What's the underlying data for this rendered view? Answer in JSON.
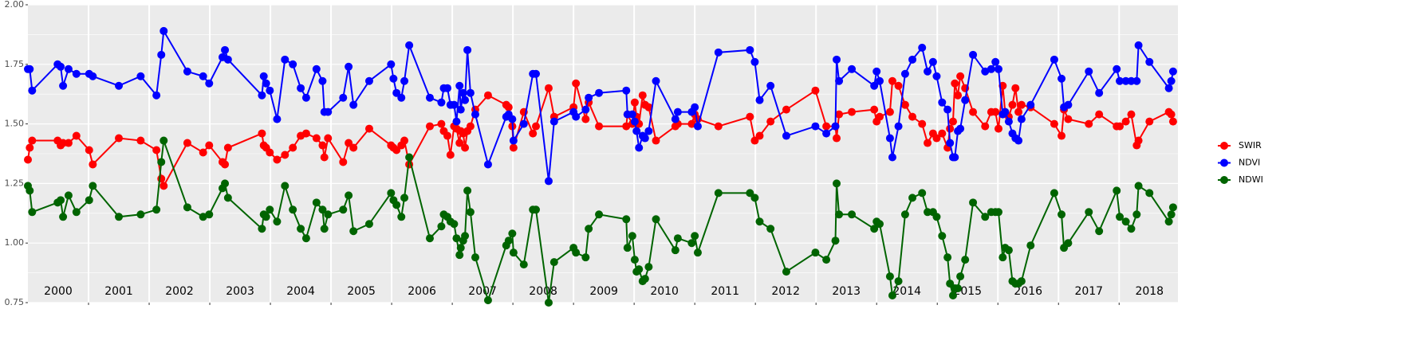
{
  "chart_data": {
    "type": "line",
    "x": [
      2000.0,
      2000.03,
      2000.07,
      2000.49,
      2000.54,
      2000.58,
      2000.67,
      2000.8,
      2001.01,
      2001.07,
      2001.5,
      2001.86,
      2002.12,
      2002.2,
      2002.24,
      2002.63,
      2002.89,
      2002.99,
      2003.21,
      2003.25,
      2003.3,
      2003.86,
      2003.89,
      2003.93,
      2003.99,
      2004.11,
      2004.24,
      2004.37,
      2004.5,
      2004.59,
      2004.76,
      2004.86,
      2004.89,
      2004.95,
      2005.2,
      2005.29,
      2005.37,
      2005.63,
      2005.99,
      2006.03,
      2006.08,
      2006.16,
      2006.21,
      2006.29,
      2006.63,
      2006.82,
      2006.86,
      2006.92,
      2006.97,
      2007.03,
      2007.07,
      2007.12,
      2007.14,
      2007.18,
      2007.21,
      2007.25,
      2007.3,
      2007.38,
      2007.59,
      2007.89,
      2007.93,
      2007.99,
      2008.01,
      2008.18,
      2008.33,
      2008.38,
      2008.59,
      2008.68,
      2009.0,
      2009.04,
      2009.2,
      2009.25,
      2009.42,
      2009.87,
      2009.89,
      2009.97,
      2010.01,
      2010.04,
      2010.08,
      2010.14,
      2010.18,
      2010.24,
      2010.36,
      2010.68,
      2010.72,
      2010.95,
      2011.0,
      2011.05,
      2011.39,
      2011.91,
      2011.99,
      2012.07,
      2012.25,
      2012.51,
      2012.99,
      2013.17,
      2013.32,
      2013.34,
      2013.38,
      2013.59,
      2013.96,
      2014.0,
      2014.05,
      2014.22,
      2014.26,
      2014.36,
      2014.47,
      2014.59,
      2014.75,
      2014.84,
      2014.93,
      2014.99,
      2015.08,
      2015.17,
      2015.21,
      2015.26,
      2015.29,
      2015.34,
      2015.38,
      2015.46,
      2015.59,
      2015.79,
      2015.89,
      2015.96,
      2016.01,
      2016.08,
      2016.12,
      2016.18,
      2016.24,
      2016.29,
      2016.34,
      2016.39,
      2016.54,
      2016.93,
      2017.05,
      2017.09,
      2017.16,
      2017.5,
      2017.67,
      2017.96,
      2018.01,
      2018.11,
      2018.2,
      2018.29,
      2018.32,
      2018.5,
      2018.82,
      2018.86,
      2018.89
    ],
    "series": [
      {
        "name": "SWIR",
        "color": "#ff0000",
        "values": [
          1.35,
          1.4,
          1.43,
          1.43,
          1.41,
          1.42,
          1.42,
          1.45,
          1.39,
          1.33,
          1.44,
          1.43,
          1.39,
          1.27,
          1.24,
          1.42,
          1.38,
          1.41,
          1.34,
          1.33,
          1.4,
          1.46,
          1.41,
          1.4,
          1.38,
          1.35,
          1.37,
          1.4,
          1.45,
          1.46,
          1.44,
          1.41,
          1.36,
          1.44,
          1.34,
          1.42,
          1.4,
          1.48,
          1.41,
          1.4,
          1.39,
          1.41,
          1.43,
          1.33,
          1.49,
          1.5,
          1.47,
          1.45,
          1.37,
          1.49,
          1.48,
          1.42,
          1.47,
          1.46,
          1.4,
          1.47,
          1.49,
          1.56,
          1.62,
          1.58,
          1.57,
          1.49,
          1.4,
          1.55,
          1.46,
          1.49,
          1.65,
          1.53,
          1.57,
          1.67,
          1.52,
          1.59,
          1.49,
          1.49,
          1.54,
          1.5,
          1.59,
          1.53,
          1.5,
          1.62,
          1.58,
          1.57,
          1.43,
          1.49,
          1.5,
          1.5,
          1.54,
          1.52,
          1.49,
          1.53,
          1.43,
          1.45,
          1.51,
          1.56,
          1.64,
          1.49,
          1.49,
          1.44,
          1.54,
          1.55,
          1.56,
          1.51,
          1.53,
          1.55,
          1.68,
          1.66,
          1.58,
          1.53,
          1.5,
          1.42,
          1.46,
          1.44,
          1.46,
          1.4,
          1.48,
          1.51,
          1.67,
          1.62,
          1.7,
          1.65,
          1.55,
          1.49,
          1.55,
          1.55,
          1.48,
          1.66,
          1.55,
          1.53,
          1.58,
          1.65,
          1.55,
          1.58,
          1.57,
          1.5,
          1.45,
          1.56,
          1.52,
          1.5,
          1.54,
          1.49,
          1.49,
          1.51,
          1.54,
          1.41,
          1.43,
          1.51,
          1.55,
          1.54,
          1.51
        ]
      },
      {
        "name": "NDVI",
        "color": "#0000ff",
        "values": [
          1.73,
          1.73,
          1.64,
          1.75,
          1.74,
          1.66,
          1.73,
          1.71,
          1.71,
          1.7,
          1.66,
          1.7,
          1.62,
          1.79,
          1.89,
          1.72,
          1.7,
          1.67,
          1.78,
          1.81,
          1.77,
          1.62,
          1.7,
          1.67,
          1.64,
          1.52,
          1.77,
          1.75,
          1.65,
          1.61,
          1.73,
          1.68,
          1.55,
          1.55,
          1.61,
          1.74,
          1.58,
          1.68,
          1.75,
          1.69,
          1.63,
          1.61,
          1.68,
          1.83,
          1.61,
          1.59,
          1.65,
          1.65,
          1.58,
          1.58,
          1.51,
          1.66,
          1.56,
          1.63,
          1.6,
          1.81,
          1.63,
          1.54,
          1.33,
          1.53,
          1.54,
          1.52,
          1.43,
          1.5,
          1.71,
          1.71,
          1.26,
          1.51,
          1.55,
          1.53,
          1.56,
          1.61,
          1.63,
          1.64,
          1.54,
          1.54,
          1.51,
          1.47,
          1.4,
          1.45,
          1.44,
          1.47,
          1.68,
          1.52,
          1.55,
          1.55,
          1.57,
          1.49,
          1.8,
          1.81,
          1.76,
          1.6,
          1.66,
          1.45,
          1.49,
          1.46,
          1.49,
          1.77,
          1.68,
          1.73,
          1.66,
          1.72,
          1.68,
          1.44,
          1.36,
          1.49,
          1.71,
          1.77,
          1.82,
          1.72,
          1.76,
          1.7,
          1.59,
          1.56,
          1.42,
          1.36,
          1.36,
          1.47,
          1.48,
          1.6,
          1.79,
          1.72,
          1.73,
          1.76,
          1.73,
          1.54,
          1.55,
          1.51,
          1.46,
          1.44,
          1.43,
          1.52,
          1.58,
          1.77,
          1.69,
          1.57,
          1.58,
          1.72,
          1.63,
          1.73,
          1.68,
          1.68,
          1.68,
          1.68,
          1.83,
          1.76,
          1.65,
          1.68,
          1.72
        ]
      },
      {
        "name": "NDWI",
        "color": "#006400",
        "values": [
          1.24,
          1.22,
          1.13,
          1.17,
          1.18,
          1.11,
          1.2,
          1.13,
          1.18,
          1.24,
          1.11,
          1.12,
          1.14,
          1.34,
          1.43,
          1.15,
          1.11,
          1.12,
          1.23,
          1.25,
          1.19,
          1.06,
          1.12,
          1.11,
          1.14,
          1.09,
          1.24,
          1.14,
          1.06,
          1.02,
          1.17,
          1.14,
          1.06,
          1.12,
          1.14,
          1.2,
          1.05,
          1.08,
          1.21,
          1.18,
          1.16,
          1.11,
          1.19,
          1.36,
          1.02,
          1.07,
          1.12,
          1.11,
          1.09,
          1.08,
          1.02,
          0.95,
          0.98,
          1.01,
          1.03,
          1.22,
          1.13,
          0.94,
          0.76,
          0.99,
          1.01,
          1.04,
          0.96,
          0.91,
          1.14,
          1.14,
          0.75,
          0.92,
          0.98,
          0.96,
          0.94,
          1.06,
          1.12,
          1.1,
          0.98,
          1.03,
          0.93,
          0.88,
          0.89,
          0.84,
          0.85,
          0.9,
          1.1,
          0.97,
          1.02,
          1.0,
          1.03,
          0.96,
          1.21,
          1.21,
          1.19,
          1.09,
          1.06,
          0.88,
          0.96,
          0.93,
          1.01,
          1.25,
          1.12,
          1.12,
          1.06,
          1.09,
          1.08,
          0.86,
          0.78,
          0.84,
          1.12,
          1.19,
          1.21,
          1.13,
          1.13,
          1.11,
          1.03,
          0.94,
          0.83,
          0.78,
          0.81,
          0.81,
          0.86,
          0.93,
          1.17,
          1.11,
          1.13,
          1.13,
          1.13,
          0.94,
          0.98,
          0.97,
          0.84,
          0.83,
          0.83,
          0.84,
          0.99,
          1.21,
          1.12,
          0.98,
          1.0,
          1.13,
          1.05,
          1.22,
          1.11,
          1.09,
          1.06,
          1.12,
          1.24,
          1.21,
          1.09,
          1.12,
          1.15
        ]
      }
    ],
    "xlim": [
      2000,
      2018.97
    ],
    "xticks": [
      {
        "value": 2000.5,
        "label": "2000"
      },
      {
        "value": 2001.5,
        "label": "2001"
      },
      {
        "value": 2002.5,
        "label": "2002"
      },
      {
        "value": 2003.5,
        "label": "2003"
      },
      {
        "value": 2004.5,
        "label": "2004"
      },
      {
        "value": 2005.5,
        "label": "2005"
      },
      {
        "value": 2006.5,
        "label": "2006"
      },
      {
        "value": 2007.5,
        "label": "2007"
      },
      {
        "value": 2008.5,
        "label": "2008"
      },
      {
        "value": 2009.5,
        "label": "2009"
      },
      {
        "value": 2010.5,
        "label": "2010"
      },
      {
        "value": 2011.5,
        "label": "2011"
      },
      {
        "value": 2012.5,
        "label": "2012"
      },
      {
        "value": 2013.5,
        "label": "2013"
      },
      {
        "value": 2014.5,
        "label": "2014"
      },
      {
        "value": 2015.5,
        "label": "2015"
      },
      {
        "value": 2016.5,
        "label": "2016"
      },
      {
        "value": 2017.5,
        "label": "2017"
      },
      {
        "value": 2018.5,
        "label": "2018"
      }
    ],
    "xgrid": [
      2001,
      2002,
      2003,
      2004,
      2005,
      2006,
      2007,
      2008,
      2009,
      2010,
      2011,
      2012,
      2013,
      2014,
      2015,
      2016,
      2017,
      2018
    ],
    "ylim": [
      0.75,
      2.0
    ],
    "yticks": [
      {
        "value": 0.75,
        "label": "0.75"
      },
      {
        "value": 1.0,
        "label": "1.00"
      },
      {
        "value": 1.25,
        "label": "1.25"
      },
      {
        "value": 1.5,
        "label": "1.50"
      },
      {
        "value": 1.75,
        "label": "1.75"
      },
      {
        "value": 2.0,
        "label": "2.00"
      }
    ],
    "grid": true,
    "legend": "right"
  }
}
